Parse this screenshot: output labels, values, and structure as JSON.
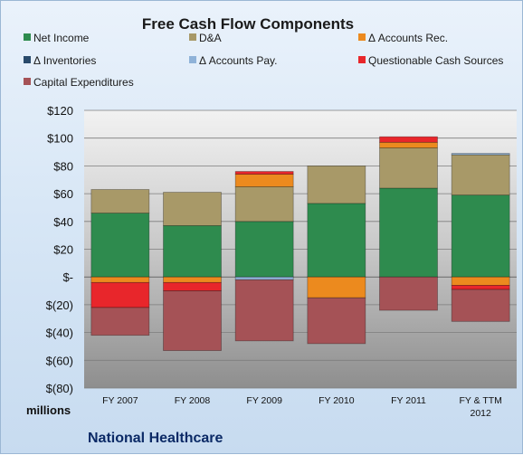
{
  "chart_data": {
    "type": "bar",
    "stacked": true,
    "title": "Free Cash Flow Components",
    "units_label": "millions",
    "company": "National Healthcare",
    "categories": [
      [
        "FY 2007"
      ],
      [
        "FY 2008"
      ],
      [
        "FY 2009"
      ],
      [
        "FY 2010"
      ],
      [
        "FY 2011"
      ],
      [
        "FY & TTM",
        "2012"
      ]
    ],
    "ylim": [
      -80,
      120
    ],
    "yticks": [
      120,
      100,
      80,
      60,
      40,
      20,
      0,
      -20,
      -40,
      -60,
      -80
    ],
    "ytick_labels": [
      "$120",
      "$100",
      "$80",
      "$60",
      "$40",
      "$20",
      "$-",
      "$(20)",
      "$(40)",
      "$(60)",
      "$(80)"
    ],
    "grid": true,
    "legend_position": "top",
    "series": [
      {
        "name": "Net Income",
        "color": "#2e8b4e",
        "values": [
          46,
          37,
          40,
          53,
          64,
          59
        ]
      },
      {
        "name": "D&A",
        "color": "#a89968",
        "values": [
          17,
          24,
          25,
          27,
          29,
          29
        ]
      },
      {
        "name": "Δ Accounts Rec.",
        "color": "#ec8a1e",
        "values": [
          -4,
          -4,
          9,
          -15,
          4,
          -6
        ]
      },
      {
        "name": "Δ Inventories",
        "color": "#294a6b",
        "values": [
          0,
          0,
          0,
          0,
          0,
          0
        ]
      },
      {
        "name": "Δ Accounts Pay.",
        "color": "#8fb2d8",
        "values": [
          0,
          0,
          -2,
          0,
          0,
          1
        ]
      },
      {
        "name": "Questionable Cash Sources",
        "color": "#e8262b",
        "values": [
          -18,
          -6,
          2,
          0,
          4,
          -3
        ]
      },
      {
        "name": "Capital Expenditures",
        "color": "#a55256",
        "values": [
          -20,
          -43,
          -44,
          -33,
          -24,
          -23
        ]
      }
    ]
  }
}
